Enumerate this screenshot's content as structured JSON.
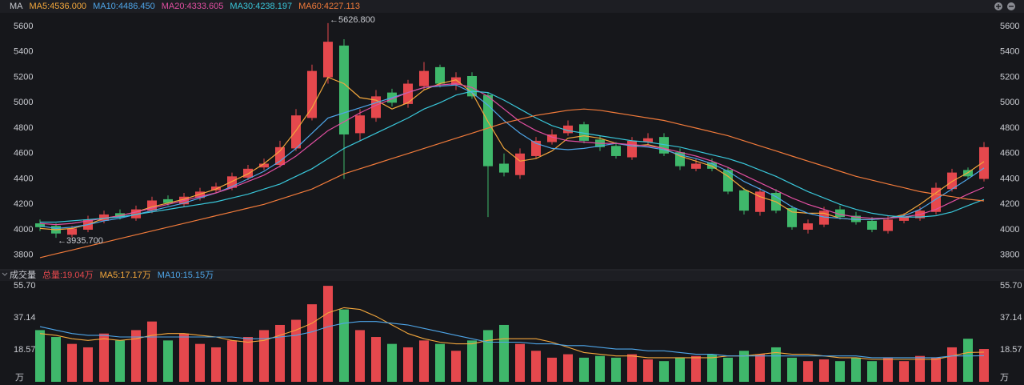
{
  "chart_data": [
    {
      "type": "candlestick",
      "title": "MA",
      "up_color": "#e5484d",
      "down_color": "#3fb86b",
      "ylim": [
        3710,
        5670
      ],
      "yticks": [
        3800,
        4000,
        4200,
        4400,
        4600,
        4800,
        5000,
        5200,
        5400,
        5600
      ],
      "open": [
        4050,
        4030,
        3960,
        4000,
        4070,
        4130,
        4090,
        4150,
        4240,
        4200,
        4250,
        4310,
        4330,
        4410,
        4490,
        4510,
        4640,
        4880,
        5200,
        5450,
        4760,
        4880,
        5080,
        4990,
        5130,
        5280,
        5140,
        5210,
        5060,
        4520,
        4430,
        4580,
        4690,
        4760,
        4830,
        4710,
        4660,
        4570,
        4690,
        4730,
        4610,
        4480,
        4530,
        4470,
        4310,
        4140,
        4290,
        4170,
        4000,
        4040,
        4160,
        4110,
        4070,
        3990,
        4070,
        4090,
        4140,
        4320,
        4470,
        4400
      ],
      "high": [
        4080,
        4050,
        4030,
        4110,
        4150,
        4160,
        4190,
        4260,
        4270,
        4290,
        4330,
        4370,
        4450,
        4510,
        4560,
        4700,
        4950,
        5300,
        5626.8,
        5500,
        4950,
        5100,
        5110,
        5180,
        5320,
        5300,
        5240,
        5240,
        5080,
        4600,
        4640,
        4730,
        4790,
        4860,
        4850,
        4740,
        4690,
        4730,
        4760,
        4760,
        4640,
        4560,
        4560,
        4490,
        4330,
        4330,
        4320,
        4190,
        4080,
        4180,
        4190,
        4140,
        4100,
        4110,
        4130,
        4180,
        4370,
        4480,
        4490,
        4690
      ],
      "low": [
        3990,
        3935.7,
        3940,
        3980,
        4050,
        4080,
        4070,
        4130,
        4190,
        4180,
        4230,
        4290,
        4310,
        4390,
        4470,
        4490,
        4620,
        4860,
        5150,
        4400,
        4700,
        4850,
        4970,
        4960,
        5100,
        5120,
        5100,
        5030,
        4100,
        4420,
        4400,
        4560,
        4670,
        4740,
        4680,
        4620,
        4560,
        4550,
        4670,
        4580,
        4470,
        4460,
        4460,
        4280,
        4120,
        4110,
        4130,
        4000,
        3970,
        4020,
        4080,
        4040,
        3980,
        3970,
        4050,
        4070,
        4120,
        4300,
        4400,
        4380
      ],
      "close": [
        4020,
        3970,
        4010,
        4080,
        4120,
        4100,
        4160,
        4230,
        4210,
        4260,
        4300,
        4340,
        4420,
        4480,
        4520,
        4650,
        4900,
        5250,
        5480,
        4750,
        4900,
        5050,
        5000,
        5150,
        5250,
        5150,
        5200,
        5050,
        4500,
        4450,
        4600,
        4700,
        4750,
        4820,
        4700,
        4650,
        4580,
        4700,
        4720,
        4600,
        4500,
        4520,
        4480,
        4300,
        4150,
        4300,
        4150,
        4020,
        4050,
        4150,
        4100,
        4060,
        4000,
        4080,
        4100,
        4150,
        4330,
        4450,
        4420,
        4650
      ],
      "series": [
        {
          "name": "MA5:4536.000",
          "color": "#f3a73c",
          "values": [
            4010,
            4000,
            4010,
            4040,
            4090,
            4110,
            4140,
            4180,
            4210,
            4240,
            4280,
            4320,
            4380,
            4440,
            4520,
            4620,
            4780,
            4960,
            5200,
            5150,
            5040,
            5020,
            4950,
            5000,
            5100,
            5150,
            5180,
            5080,
            4850,
            4640,
            4540,
            4560,
            4620,
            4720,
            4740,
            4720,
            4680,
            4660,
            4670,
            4640,
            4580,
            4540,
            4500,
            4420,
            4320,
            4260,
            4220,
            4140,
            4130,
            4130,
            4090,
            4080,
            4080,
            4090,
            4120,
            4200,
            4290,
            4380,
            4450,
            4536
          ]
        },
        {
          "name": "MA10:4486.450",
          "color": "#4ea5e8",
          "values": [
            4030,
            4010,
            4020,
            4040,
            4070,
            4090,
            4120,
            4150,
            4180,
            4210,
            4250,
            4290,
            4340,
            4400,
            4460,
            4540,
            4640,
            4760,
            4880,
            4920,
            4960,
            5000,
            5040,
            5080,
            5120,
            5130,
            5140,
            5080,
            4980,
            4860,
            4760,
            4680,
            4640,
            4630,
            4640,
            4660,
            4680,
            4660,
            4650,
            4630,
            4590,
            4560,
            4520,
            4460,
            4380,
            4320,
            4260,
            4180,
            4130,
            4100,
            4090,
            4080,
            4080,
            4090,
            4110,
            4160,
            4240,
            4320,
            4400,
            4486
          ]
        },
        {
          "name": "MA20:4333.605",
          "color": "#e04ea0",
          "values": [
            4050,
            4040,
            4050,
            4070,
            4090,
            4110,
            4140,
            4170,
            4200,
            4230,
            4260,
            4290,
            4330,
            4380,
            4430,
            4500,
            4580,
            4680,
            4780,
            4850,
            4920,
            4980,
            5030,
            5080,
            5120,
            5140,
            5150,
            5120,
            5050,
            4950,
            4850,
            4780,
            4730,
            4700,
            4690,
            4680,
            4680,
            4670,
            4660,
            4640,
            4610,
            4580,
            4540,
            4490,
            4430,
            4370,
            4310,
            4250,
            4200,
            4160,
            4120,
            4100,
            4090,
            4090,
            4100,
            4120,
            4160,
            4220,
            4280,
            4334
          ]
        },
        {
          "name": "MA30:4238.197",
          "color": "#39c6d9",
          "values": [
            4060,
            4060,
            4070,
            4080,
            4090,
            4100,
            4120,
            4140,
            4160,
            4180,
            4200,
            4220,
            4250,
            4280,
            4320,
            4360,
            4420,
            4480,
            4560,
            4640,
            4700,
            4760,
            4820,
            4880,
            4950,
            5000,
            5060,
            5090,
            5080,
            5020,
            4950,
            4880,
            4820,
            4780,
            4760,
            4740,
            4720,
            4700,
            4690,
            4670,
            4650,
            4620,
            4590,
            4560,
            4520,
            4470,
            4420,
            4360,
            4300,
            4250,
            4200,
            4160,
            4130,
            4110,
            4100,
            4100,
            4110,
            4140,
            4190,
            4238
          ]
        },
        {
          "name": "MA60:4227.113",
          "color": "#f07a3a",
          "values": [
            3780,
            3810,
            3840,
            3870,
            3900,
            3930,
            3960,
            3990,
            4020,
            4050,
            4080,
            4110,
            4140,
            4170,
            4200,
            4240,
            4280,
            4320,
            4380,
            4440,
            4480,
            4520,
            4560,
            4600,
            4640,
            4680,
            4720,
            4760,
            4800,
            4840,
            4870,
            4900,
            4920,
            4940,
            4950,
            4940,
            4920,
            4900,
            4880,
            4860,
            4830,
            4800,
            4770,
            4740,
            4700,
            4660,
            4620,
            4580,
            4540,
            4500,
            4460,
            4420,
            4390,
            4360,
            4330,
            4300,
            4280,
            4260,
            4240,
            4227
          ]
        }
      ],
      "annotations": [
        {
          "text": "←5626.800",
          "x": 18,
          "y": 5626.8
        },
        {
          "text": "←3935.700",
          "x": 1,
          "y": 3935.7
        }
      ]
    },
    {
      "type": "bar",
      "title": "成交量",
      "unit": "万",
      "ylim": [
        0,
        59
      ],
      "yticks": [
        {
          "value": 18.57,
          "label": "18.57"
        },
        {
          "value": 37.14,
          "label": "37.14"
        },
        {
          "value": 55.7,
          "label": "55.70"
        }
      ],
      "series": [
        {
          "name": "总量:19.04万",
          "color": "#e5484d",
          "values": [
            30,
            26,
            22,
            20,
            28,
            24,
            30,
            35,
            24,
            28,
            22,
            20,
            24,
            26,
            30,
            33,
            36,
            45,
            55.7,
            42,
            30,
            26,
            22,
            20,
            24,
            22,
            18,
            24,
            30,
            33,
            22,
            18,
            14,
            16,
            14,
            15,
            14,
            16,
            13,
            12,
            14,
            15,
            16,
            14,
            18,
            16,
            20,
            14,
            12,
            13,
            12,
            14,
            12,
            14,
            12,
            15,
            14,
            20,
            25,
            19.04
          ]
        },
        {
          "name": "MA5:17.17万",
          "color": "#f3a73c",
          "values": [
            28,
            27,
            25,
            24,
            25,
            24,
            25,
            27,
            28,
            28,
            27,
            26,
            24,
            23,
            24,
            27,
            30,
            34,
            40,
            43,
            42,
            38,
            33,
            28,
            25,
            23,
            22,
            22,
            24,
            25,
            25,
            25,
            23,
            20,
            17,
            16,
            15,
            15,
            14,
            14,
            14,
            14,
            14,
            15,
            15,
            16,
            17,
            16,
            16,
            15,
            14,
            14,
            13,
            13,
            13,
            13,
            13,
            15,
            17,
            17.17
          ]
        },
        {
          "name": "MA10:15.15万",
          "color": "#4ea5e8",
          "values": [
            32,
            30,
            28,
            27,
            27,
            26,
            26,
            26,
            26,
            26,
            26,
            26,
            26,
            25,
            25,
            26,
            27,
            29,
            32,
            34,
            35,
            35,
            34,
            33,
            31,
            29,
            27,
            25,
            23,
            23,
            23,
            22,
            22,
            21,
            21,
            20,
            19,
            19,
            18,
            18,
            17,
            16,
            16,
            15,
            15,
            15,
            15,
            15,
            15,
            15,
            15,
            15,
            14,
            14,
            14,
            14,
            14,
            15,
            15,
            15.15
          ]
        }
      ]
    }
  ]
}
